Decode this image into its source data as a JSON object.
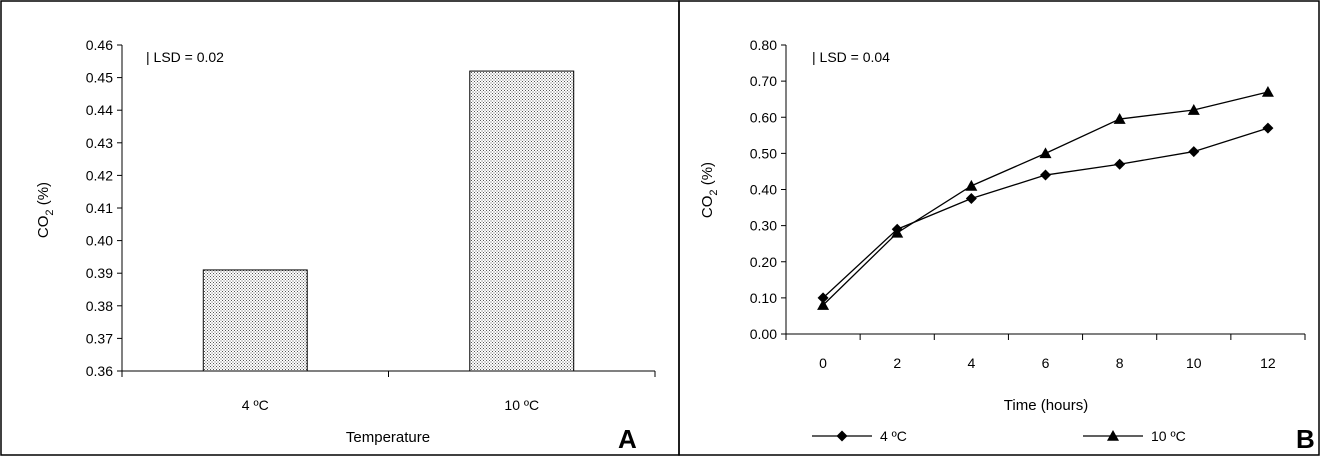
{
  "chart_data": [
    {
      "panel": "A",
      "type": "bar",
      "categories": [
        "4 ºC",
        "10 ºC"
      ],
      "values": [
        0.391,
        0.452
      ],
      "xlabel": "Temperature",
      "ylabel": "CO",
      "ylabel_sub": "2",
      "ylabel_suffix": " (%)",
      "ylim": [
        0.36,
        0.46
      ],
      "yticks": [
        "0.36",
        "0.37",
        "0.38",
        "0.39",
        "0.40",
        "0.41",
        "0.42",
        "0.43",
        "0.44",
        "0.45",
        "0.46"
      ],
      "annotation": "| LSD  =  0.02",
      "bar_pattern": "dotted",
      "grid": false
    },
    {
      "panel": "B",
      "type": "line",
      "x": [
        0,
        2,
        4,
        6,
        8,
        10,
        12
      ],
      "xticks": [
        "0",
        "2",
        "4",
        "6",
        "8",
        "10",
        "12"
      ],
      "series": [
        {
          "name": "4 ºC",
          "marker": "diamond",
          "values": [
            0.1,
            0.29,
            0.375,
            0.44,
            0.47,
            0.505,
            0.57
          ]
        },
        {
          "name": "10 ºC",
          "marker": "triangle",
          "values": [
            0.08,
            0.28,
            0.41,
            0.5,
            0.595,
            0.62,
            0.67
          ]
        }
      ],
      "xlabel": "Time (hours)",
      "ylabel": "CO",
      "ylabel_sub": "2",
      "ylabel_suffix": " (%)",
      "ylim": [
        0.0,
        0.8
      ],
      "yticks": [
        "0.00",
        "0.10",
        "0.20",
        "0.30",
        "0.40",
        "0.50",
        "0.60",
        "0.70",
        "0.80"
      ],
      "annotation": "| LSD  =  0.04",
      "legend_position": "bottom",
      "grid": false
    }
  ]
}
